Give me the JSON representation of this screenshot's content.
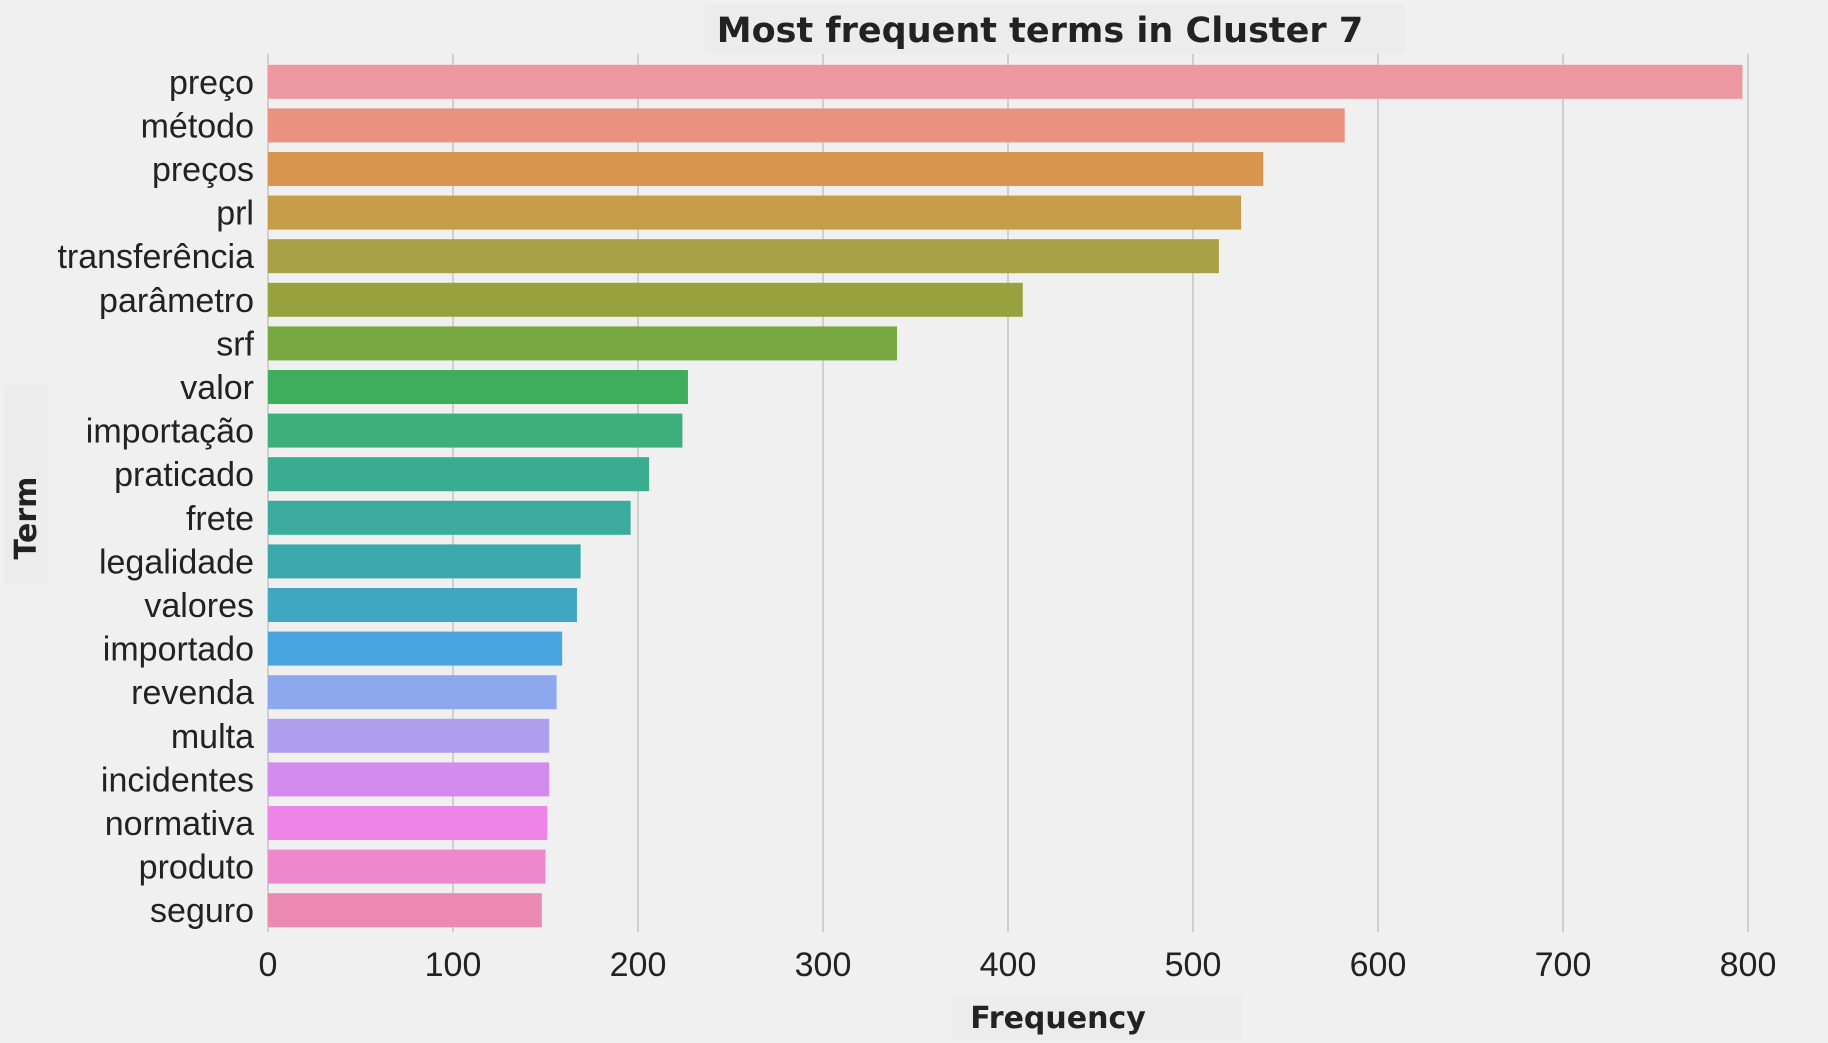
{
  "chart_data": {
    "type": "bar",
    "orientation": "horizontal",
    "title": "Most frequent terms in Cluster 7",
    "xlabel": "Frequency",
    "ylabel": "Term",
    "xlim": [
      0,
      800
    ],
    "xticks": [
      0,
      100,
      200,
      300,
      400,
      500,
      600,
      700,
      800
    ],
    "grid": "vertical",
    "categories": [
      "preço",
      "método",
      "preços",
      "prl",
      "transferência",
      "parâmetro",
      "srf",
      "valor",
      "importação",
      "praticado",
      "frete",
      "legalidade",
      "valores",
      "importado",
      "revenda",
      "multa",
      "incidentes",
      "normativa",
      "produto",
      "seguro"
    ],
    "values": [
      797,
      582,
      538,
      526,
      514,
      408,
      340,
      227,
      224,
      206,
      196,
      169,
      167,
      159,
      156,
      152,
      152,
      151,
      150,
      148
    ],
    "colors": [
      "#ed97a1",
      "#e9927f",
      "#d9944e",
      "#c69c48",
      "#a8a044",
      "#97a23f",
      "#7aa840",
      "#3fae5a",
      "#3eae7a",
      "#3aac90",
      "#3aab9e",
      "#3ba9ac",
      "#3fa7c0",
      "#4aa4df",
      "#8da8ee",
      "#ae9eee",
      "#d38ced",
      "#ec85e6",
      "#ee88cd",
      "#ec89b1"
    ]
  }
}
